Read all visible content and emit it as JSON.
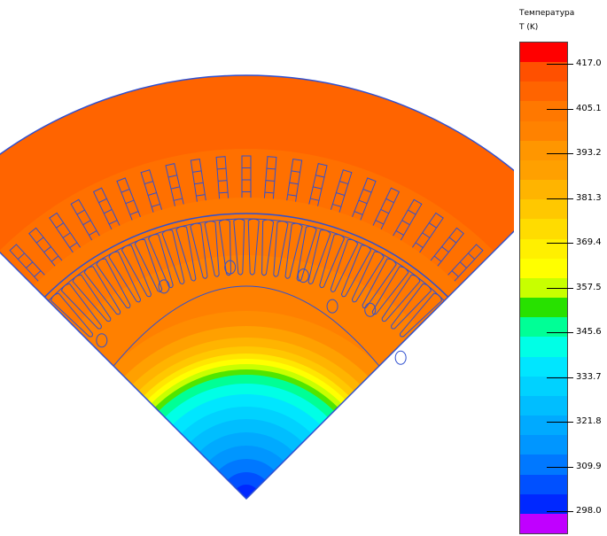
{
  "legend": {
    "title": "Температура",
    "unit": "T (K)",
    "levels": [
      "417.0",
      "405.1",
      "393.2",
      "381.3",
      "369.4",
      "357.5",
      "345.6",
      "333.7",
      "321.8",
      "309.9",
      "298.0"
    ],
    "colors": [
      "#FF0000",
      "#FF5000",
      "#FF6400",
      "#FF7800",
      "#FF8200",
      "#FF9600",
      "#FFA000",
      "#FFB400",
      "#FFC800",
      "#FFDC00",
      "#FFF000",
      "#FFFF00",
      "#C8FF00",
      "#28E100",
      "#00FF96",
      "#00FFE6",
      "#00E6FF",
      "#00D2FF",
      "#00BEFF",
      "#00AAFF",
      "#0096FF",
      "#0078FF",
      "#0050FF",
      "#0028FF",
      "#C000FF"
    ]
  },
  "model": {
    "slot_count": 21,
    "rotor_hole_count": 7,
    "stator_outer_color": "#FF6400",
    "tooth_ring_color": "#FF7000",
    "rotor_iron_color": "#FF7800",
    "outline_color": "#3050D0"
  }
}
